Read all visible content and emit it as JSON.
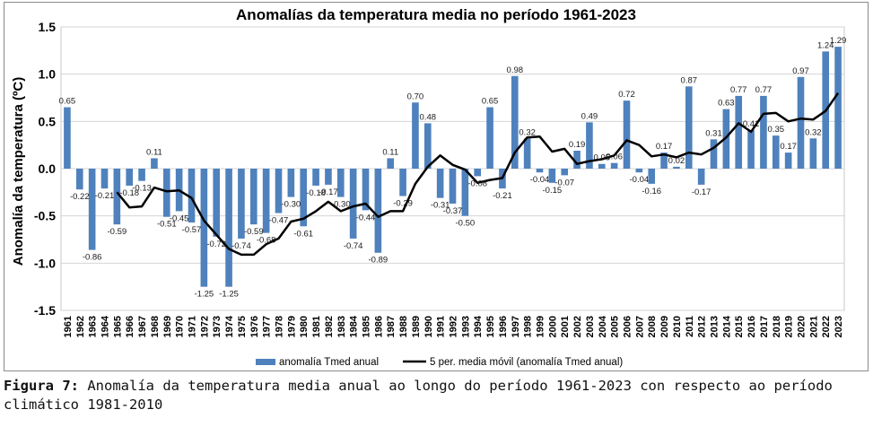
{
  "chart_data": {
    "type": "bar",
    "title": "Anomalías da temperatura media no período 1961-2023",
    "ylabel": "Anomalía da temperatura (ºC)",
    "ylim": [
      -1.5,
      1.5
    ],
    "yticks": [
      -1.5,
      -1.0,
      -0.5,
      0.0,
      0.5,
      1.0,
      1.5
    ],
    "ytick_labels": [
      "-1.5",
      "-1.0",
      "-0.5",
      "0.0",
      "0.5",
      "1.0",
      "1.5"
    ],
    "grid": true,
    "legend_position": "bottom",
    "categories": [
      "1961",
      "1962",
      "1963",
      "1964",
      "1965",
      "1966",
      "1967",
      "1968",
      "1969",
      "1970",
      "1971",
      "1972",
      "1973",
      "1974",
      "1975",
      "1976",
      "1977",
      "1978",
      "1979",
      "1980",
      "1981",
      "1982",
      "1983",
      "1984",
      "1985",
      "1986",
      "1987",
      "1988",
      "1989",
      "1990",
      "1991",
      "1992",
      "1993",
      "1994",
      "1995",
      "1996",
      "1997",
      "1998",
      "1999",
      "2000",
      "2001",
      "2002",
      "2003",
      "2004",
      "2005",
      "2006",
      "2007",
      "2008",
      "2009",
      "2010",
      "2011",
      "2012",
      "2013",
      "2014",
      "2015",
      "2016",
      "2017",
      "2018",
      "2019",
      "2020",
      "2021",
      "2022",
      "2023"
    ],
    "series": [
      {
        "name": "anomalía Tmed anual",
        "kind": "bar",
        "color": "#4f81bd",
        "values": [
          0.65,
          -0.22,
          -0.86,
          -0.21,
          -0.59,
          -0.18,
          -0.13,
          0.11,
          -0.51,
          -0.45,
          -0.57,
          -1.25,
          -0.72,
          -1.25,
          -0.74,
          -0.59,
          -0.68,
          -0.47,
          -0.3,
          -0.61,
          -0.18,
          -0.17,
          -0.3,
          -0.74,
          -0.44,
          -0.89,
          0.11,
          -0.29,
          0.7,
          0.48,
          -0.31,
          -0.37,
          -0.5,
          -0.08,
          0.65,
          -0.21,
          0.98,
          0.32,
          -0.04,
          -0.15,
          -0.07,
          0.19,
          0.49,
          0.05,
          0.06,
          0.72,
          -0.04,
          -0.16,
          0.17,
          0.02,
          0.87,
          -0.17,
          0.31,
          0.63,
          0.77,
          0.41,
          0.77,
          0.35,
          0.17,
          0.97,
          0.32,
          1.24,
          1.29
        ],
        "labels": [
          "0.65",
          "-0.22",
          "-0.86",
          "-0.21",
          "-0.59",
          "-0.18",
          "-0.13",
          "0.11",
          "-0.51",
          "-0.45",
          "-0.57",
          "-1.25",
          "-0.72",
          "-1.25",
          "-0.74",
          "-0.59",
          "-0.68",
          "-0.47",
          "-0.30",
          "-0.61",
          "-0.18",
          "-0.17",
          "-0.30",
          "-0.74",
          "-0.44",
          "-0.89",
          "0.11",
          "-0.29",
          "0.70",
          "0.48",
          "-0.31",
          "-0.37",
          "-0.50",
          "-0.08",
          "0.65",
          "-0.21",
          "0.98",
          "0.32",
          "-0.04",
          "-0.15",
          "-0.07",
          "0.19",
          "0.49",
          "0.05",
          "0.06",
          "0.72",
          "-0.04",
          "-0.16",
          "0.17",
          "0.02",
          "0.87",
          "-0.17",
          "0.31",
          "0.63",
          "0.77",
          "0.41",
          "0.77",
          "0.35",
          "0.17",
          "0.97",
          "0.32",
          "1.24",
          "1.29"
        ]
      },
      {
        "name": "5 per. media móvil (anomalía Tmed anual)",
        "kind": "line",
        "color": "#000000",
        "values": [
          null,
          null,
          null,
          null,
          -0.25,
          -0.41,
          -0.4,
          -0.2,
          -0.24,
          -0.23,
          -0.31,
          -0.55,
          -0.7,
          -0.85,
          -0.91,
          -0.91,
          -0.8,
          -0.74,
          -0.56,
          -0.53,
          -0.45,
          -0.35,
          -0.45,
          -0.4,
          -0.37,
          -0.51,
          -0.45,
          -0.45,
          -0.16,
          0.02,
          0.14,
          0.04,
          -0.01,
          -0.15,
          -0.12,
          -0.1,
          0.17,
          0.33,
          0.34,
          0.18,
          0.21,
          0.05,
          0.08,
          0.1,
          0.14,
          0.3,
          0.25,
          0.13,
          0.15,
          0.12,
          0.17,
          0.15,
          0.22,
          0.33,
          0.48,
          0.39,
          0.58,
          0.59,
          0.5,
          0.53,
          0.52,
          0.61,
          0.8
        ]
      }
    ]
  },
  "caption": {
    "label": "Figura 7:",
    "text": " Anomalía da temperatura media anual ao longo do período 1961-2023 con respecto ao período climático 1981-2010"
  }
}
